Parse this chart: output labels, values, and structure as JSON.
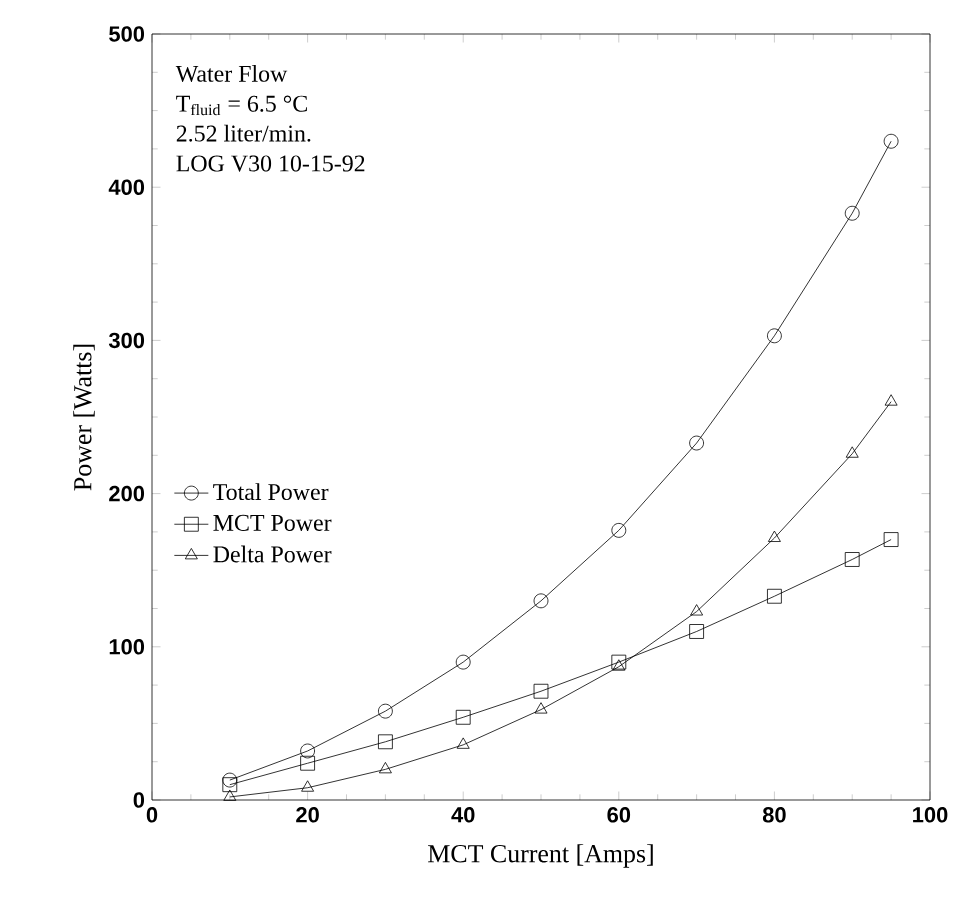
{
  "chart_data": {
    "type": "line",
    "xlabel": "MCT Current [Amps]",
    "ylabel": "Power [Watts]",
    "annotations": [
      "Water Flow",
      "T$_{fluid}$ = 6.5 °C",
      "2.52 liter/min.",
      "LOG V30 10-15-92"
    ],
    "x": [
      10,
      20,
      30,
      40,
      50,
      60,
      70,
      80,
      90,
      95
    ],
    "series": [
      {
        "name": "Total Power",
        "color": "#000000",
        "marker": "circle",
        "values": [
          13,
          32,
          58,
          90,
          130,
          176,
          233,
          303,
          383,
          430
        ]
      },
      {
        "name": "MCT Power",
        "color": "#000000",
        "marker": "square",
        "values": [
          10,
          24,
          38,
          54,
          71,
          90,
          110,
          133,
          157,
          170
        ]
      },
      {
        "name": "Delta Power",
        "color": "#000000",
        "marker": "triangle",
        "values": [
          2,
          8,
          20,
          36,
          59,
          87,
          123,
          171,
          226,
          260
        ]
      }
    ],
    "xlim": [
      0,
      100
    ],
    "ylim": [
      0,
      500
    ],
    "xticks": [
      0,
      20,
      40,
      60,
      80,
      100
    ],
    "yticks": [
      0,
      100,
      200,
      300,
      400,
      500
    ],
    "legend": "left",
    "grid": false,
    "line_style": "solid"
  }
}
